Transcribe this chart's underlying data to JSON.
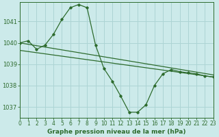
{
  "title": "Graphe pression niveau de la mer (hPa)",
  "background_color": "#cceaea",
  "grid_color": "#add4d4",
  "line_color": "#2d6b2d",
  "xlim": [
    0,
    23
  ],
  "ylim": [
    1036.5,
    1041.9
  ],
  "yticks": [
    1037,
    1038,
    1039,
    1040,
    1041
  ],
  "xticks": [
    0,
    1,
    2,
    3,
    4,
    5,
    6,
    7,
    8,
    9,
    10,
    11,
    12,
    13,
    14,
    15,
    16,
    17,
    18,
    19,
    20,
    21,
    22,
    23
  ],
  "series1_x": [
    0,
    1,
    2,
    3,
    4,
    5,
    6,
    7,
    8,
    9,
    10,
    11,
    12,
    13,
    14,
    15,
    16,
    17,
    18,
    19,
    20,
    21,
    22,
    23
  ],
  "series1_y": [
    1040.0,
    1040.1,
    1039.7,
    1039.9,
    1040.4,
    1041.1,
    1041.65,
    1041.8,
    1041.65,
    1039.9,
    1038.8,
    1038.2,
    1037.5,
    1036.75,
    1036.75,
    1037.1,
    1038.0,
    1038.55,
    1038.75,
    1038.65,
    1038.6,
    1038.55,
    1038.45,
    1038.4
  ],
  "series2_x": [
    0,
    23
  ],
  "series2_y": [
    1040.0,
    1038.5
  ],
  "series3_x": [
    0,
    23
  ],
  "series3_y": [
    1039.65,
    1038.4
  ],
  "tick_fontsize": 5.5,
  "xlabel_fontsize": 6.5
}
